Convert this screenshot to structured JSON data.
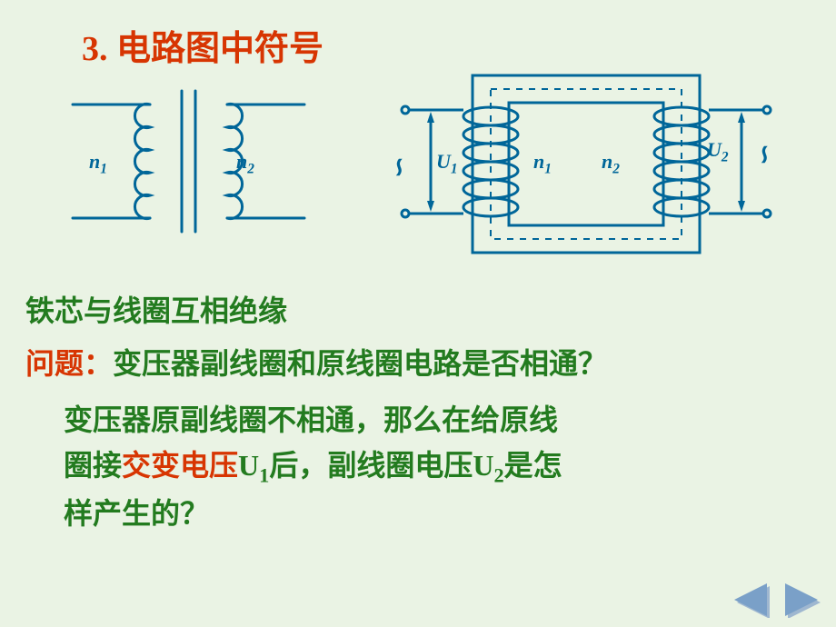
{
  "title": "3. 电路图中符号",
  "symbol": {
    "left_label_html": "n<span class='sub'>1</span>",
    "right_label_html": "n<span class='sub'>2</span>",
    "stroke": "#006699",
    "stroke_width": 3
  },
  "core_diagram": {
    "u1_html": "U<span class='sub'>1</span>",
    "u2_html": "U<span class='sub'>2</span>",
    "n1_html": "n<span class='sub'>1</span>",
    "n2_html": "n<span class='sub'>2</span>",
    "tilde": "∽",
    "stroke": "#006699",
    "stroke_width": 3,
    "dash": "6 6"
  },
  "text": {
    "line1": "铁芯与线圈互相绝缘",
    "line2_label": "问题：",
    "line2_body": "变压器副线圈和原线圈电路是否相通？",
    "line3_a": "变压器原副线圈不相通，那么在给原线",
    "line3_b1": "圈接",
    "line3_b2": "交变电压",
    "line3_b3": "U",
    "line3_b3_sub": "1",
    "line3_b4": "后，副线圈电压U",
    "line3_b4_sub": "2",
    "line3_b5": "是怎",
    "line3_c": "样产生的？"
  },
  "nav": {
    "prev_fill": "#7aa0c8",
    "next_fill": "#7aa0c8",
    "shadow": "#9fb7d0"
  },
  "bg": "#eaf3e4"
}
